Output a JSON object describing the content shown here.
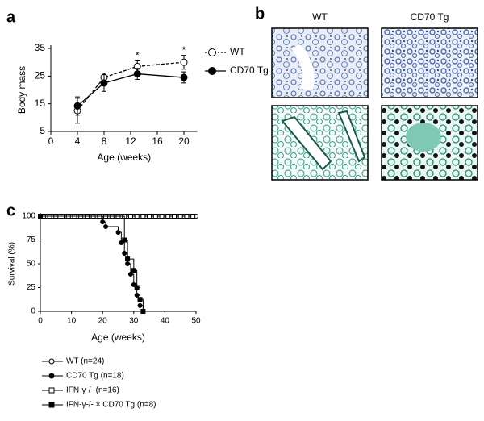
{
  "chart_data": [
    {
      "type": "line",
      "panel": "a",
      "ylabel": "Body mass",
      "xlabel": "Age (weeks)",
      "x": [
        4,
        8,
        13,
        20
      ],
      "xlim": [
        0,
        22
      ],
      "xticks": [
        0,
        4,
        8,
        12,
        16,
        20
      ],
      "ylim": [
        5,
        35
      ],
      "yticks": [
        5,
        15,
        25,
        35
      ],
      "series": [
        {
          "name": "WT",
          "color": "#000000",
          "marker": "circle-open",
          "dash": true,
          "values": [
            12.5,
            24.5,
            28.5,
            30
          ],
          "errors": [
            4.5,
            1.5,
            2,
            2.5
          ]
        },
        {
          "name": "CD70 Tg",
          "color": "#000000",
          "marker": "circle-filled",
          "dash": false,
          "values": [
            14.2,
            22.5,
            25.8,
            24.5
          ],
          "errors": [
            3.3,
            3,
            2,
            2
          ]
        }
      ],
      "annotations": [
        {
          "text": "*",
          "x": 13
        },
        {
          "text": "*",
          "x": 20
        }
      ]
    },
    {
      "type": "image",
      "panel": "b",
      "columns": [
        "WT",
        "CD70 Tg"
      ]
    },
    {
      "type": "step",
      "panel": "c",
      "ylabel": "Survival (%)",
      "xlabel": "Age (weeks)",
      "xlim": [
        0,
        50
      ],
      "xticks": [
        0,
        10,
        20,
        30,
        40,
        50
      ],
      "ylim": [
        0,
        100
      ],
      "yticks": [
        0,
        25,
        50,
        75,
        100
      ],
      "series": [
        {
          "name": "WT (n=24)",
          "color": "#000000",
          "marker": "circle-open",
          "x": [
            0,
            2,
            4,
            6,
            8,
            10,
            12,
            14,
            16,
            18,
            20,
            22,
            24,
            26,
            28,
            30,
            32,
            34,
            36,
            38,
            40,
            42,
            44,
            46,
            48,
            50
          ],
          "values": [
            100,
            100,
            100,
            100,
            100,
            100,
            100,
            100,
            100,
            100,
            100,
            100,
            100,
            100,
            100,
            100,
            100,
            100,
            100,
            100,
            100,
            100,
            100,
            100,
            100,
            100
          ]
        },
        {
          "name": "CD70 Tg (n=18)",
          "color": "#000000",
          "marker": "circle-filled",
          "x": [
            0,
            20,
            21,
            25,
            26,
            27,
            28,
            29,
            30,
            31,
            32,
            33
          ],
          "values": [
            100,
            94,
            89,
            83,
            72,
            61,
            50,
            39,
            28,
            17,
            6,
            0
          ]
        },
        {
          "name": "IFN-γ-/- (n=16)",
          "color": "#000000",
          "marker": "square-open",
          "x": [
            1,
            3,
            5,
            7,
            9,
            11,
            13,
            15,
            17,
            19,
            21,
            23,
            25,
            27,
            29,
            31,
            33,
            35,
            37,
            39,
            41,
            43,
            45,
            47,
            49
          ],
          "values": [
            100,
            100,
            100,
            100,
            100,
            100,
            100,
            100,
            100,
            100,
            100,
            100,
            100,
            100,
            100,
            100,
            100,
            100,
            100,
            100,
            100,
            100,
            100,
            100,
            100
          ]
        },
        {
          "name": "IFN-γ-/- × CD70 Tg (n=8)",
          "color": "#000000",
          "marker": "square-filled",
          "x": [
            0,
            27,
            28,
            30,
            31,
            32,
            33
          ],
          "values": [
            100,
            75,
            55,
            43,
            25,
            12.5,
            0
          ]
        }
      ]
    }
  ]
}
